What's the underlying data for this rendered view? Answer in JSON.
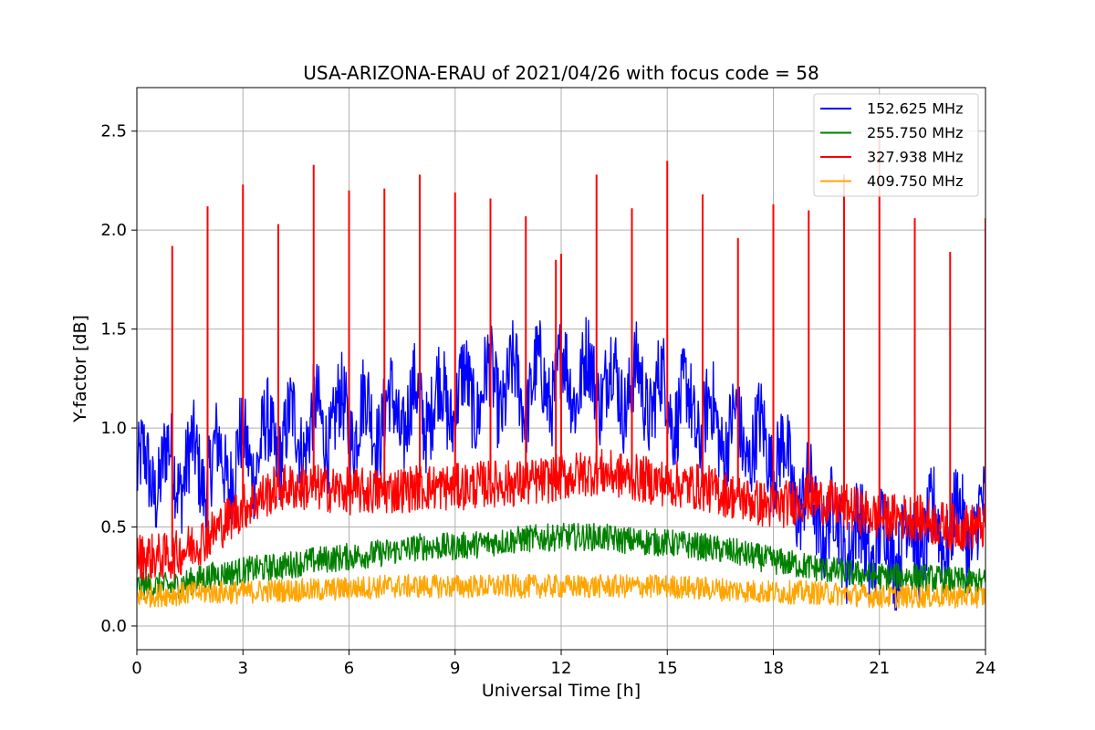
{
  "chart_data": {
    "type": "line",
    "title": "USA-ARIZONA-ERAU of 2021/04/26 with focus code = 58",
    "xlabel": "Universal Time [h]",
    "ylabel": "Y-factor [dB]",
    "xlim": [
      0,
      24
    ],
    "ylim": [
      -0.12,
      2.72
    ],
    "x_ticks": [
      0,
      3,
      6,
      9,
      12,
      15,
      18,
      21,
      24
    ],
    "x_tick_labels": [
      "0",
      "3",
      "6",
      "9",
      "12",
      "15",
      "18",
      "21",
      "24"
    ],
    "y_ticks": [
      0.0,
      0.5,
      1.0,
      1.5,
      2.0,
      2.5
    ],
    "y_tick_labels": [
      "0.0",
      "0.5",
      "1.0",
      "1.5",
      "2.0",
      "2.5"
    ],
    "grid": true,
    "legend_position": "top-right",
    "series": [
      {
        "name": "152.625 MHz",
        "color": "#0000ff",
        "x": [
          0,
          1,
          2,
          3,
          4,
          5,
          6,
          7,
          8,
          9,
          10,
          11,
          12,
          13,
          14,
          15,
          16,
          17,
          18,
          19,
          20,
          21,
          22,
          23,
          24
        ],
        "y": [
          0.75,
          0.8,
          0.8,
          0.85,
          0.95,
          1.0,
          1.05,
          1.05,
          1.1,
          1.15,
          1.2,
          1.2,
          1.25,
          1.25,
          1.2,
          1.15,
          1.05,
          0.95,
          0.9,
          0.6,
          0.45,
          0.4,
          0.45,
          0.5,
          0.5
        ]
      },
      {
        "name": "255.750 MHz",
        "color": "#008000",
        "x": [
          0,
          1,
          2,
          3,
          4,
          5,
          6,
          7,
          8,
          9,
          10,
          11,
          12,
          13,
          14,
          15,
          16,
          17,
          18,
          19,
          20,
          21,
          22,
          23,
          24
        ],
        "y": [
          0.2,
          0.2,
          0.25,
          0.28,
          0.3,
          0.33,
          0.35,
          0.37,
          0.4,
          0.4,
          0.42,
          0.44,
          0.45,
          0.45,
          0.43,
          0.42,
          0.4,
          0.37,
          0.33,
          0.3,
          0.27,
          0.25,
          0.25,
          0.23,
          0.22
        ]
      },
      {
        "name": "327.938 MHz",
        "color": "#ff0000",
        "x": [
          0,
          1,
          2,
          3,
          4,
          5,
          6,
          7,
          8,
          9,
          10,
          11,
          12,
          13,
          14,
          15,
          16,
          17,
          18,
          19,
          20,
          21,
          22,
          23,
          24
        ],
        "y": [
          0.35,
          0.35,
          0.45,
          0.6,
          0.7,
          0.7,
          0.68,
          0.68,
          0.7,
          0.7,
          0.72,
          0.72,
          0.75,
          0.78,
          0.75,
          0.72,
          0.7,
          0.65,
          0.6,
          0.65,
          0.6,
          0.55,
          0.55,
          0.5,
          0.5
        ]
      },
      {
        "name": "409.750 MHz",
        "color": "#ffa500",
        "x": [
          0,
          1,
          2,
          3,
          4,
          5,
          6,
          7,
          8,
          9,
          10,
          11,
          12,
          13,
          14,
          15,
          16,
          17,
          18,
          19,
          20,
          21,
          22,
          23,
          24
        ],
        "y": [
          0.15,
          0.16,
          0.17,
          0.17,
          0.18,
          0.18,
          0.19,
          0.2,
          0.2,
          0.2,
          0.2,
          0.2,
          0.2,
          0.2,
          0.2,
          0.2,
          0.19,
          0.18,
          0.17,
          0.17,
          0.16,
          0.15,
          0.15,
          0.15,
          0.15
        ]
      }
    ],
    "spikes": {
      "series": "327.938 MHz",
      "x": [
        1,
        2,
        3,
        4,
        5,
        6,
        7,
        8,
        9,
        10,
        11,
        11.85,
        12,
        13,
        14,
        15,
        16,
        17,
        18,
        19,
        20,
        21,
        22,
        23,
        24
      ],
      "y": [
        1.92,
        2.12,
        2.23,
        2.03,
        2.33,
        2.2,
        2.21,
        2.28,
        2.19,
        2.16,
        2.07,
        1.85,
        1.88,
        2.28,
        2.11,
        2.35,
        2.18,
        1.96,
        2.13,
        2.1,
        2.28,
        2.5,
        2.06,
        1.89,
        2.06
      ]
    }
  }
}
